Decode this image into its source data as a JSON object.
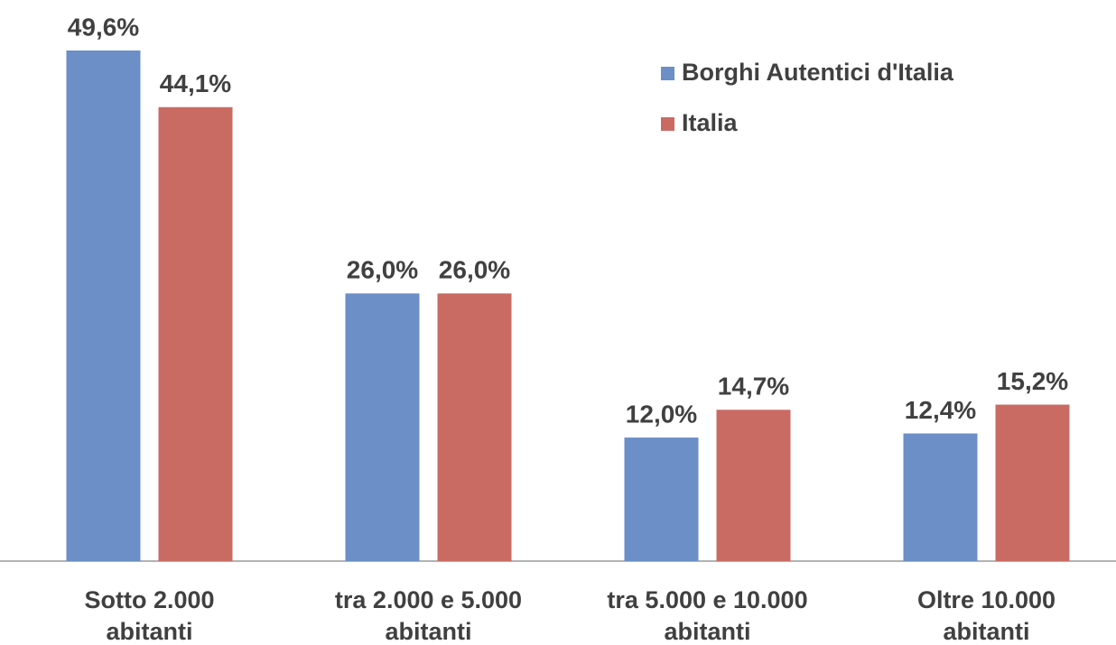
{
  "chart_data": {
    "type": "bar",
    "categories": [
      "Sotto 2.000\nabitanti",
      "tra 2.000 e 5.000\nabitanti",
      "tra 5.000 e 10.000\nabitanti",
      "Oltre 10.000\nabitanti"
    ],
    "series": [
      {
        "name": "Borghi Autentici d'Italia",
        "color": "#6b8fc6",
        "values": [
          49.6,
          26.0,
          12.0,
          12.4
        ],
        "value_labels": [
          "49,6%",
          "26,0%",
          "12,0%",
          "12,4%"
        ]
      },
      {
        "name": "Italia",
        "color": "#c96b63",
        "values": [
          44.1,
          26.0,
          14.7,
          15.2
        ],
        "value_labels": [
          "44,1%",
          "26,0%",
          "14,7%",
          "15,2%"
        ]
      }
    ],
    "legend": "top-right"
  }
}
